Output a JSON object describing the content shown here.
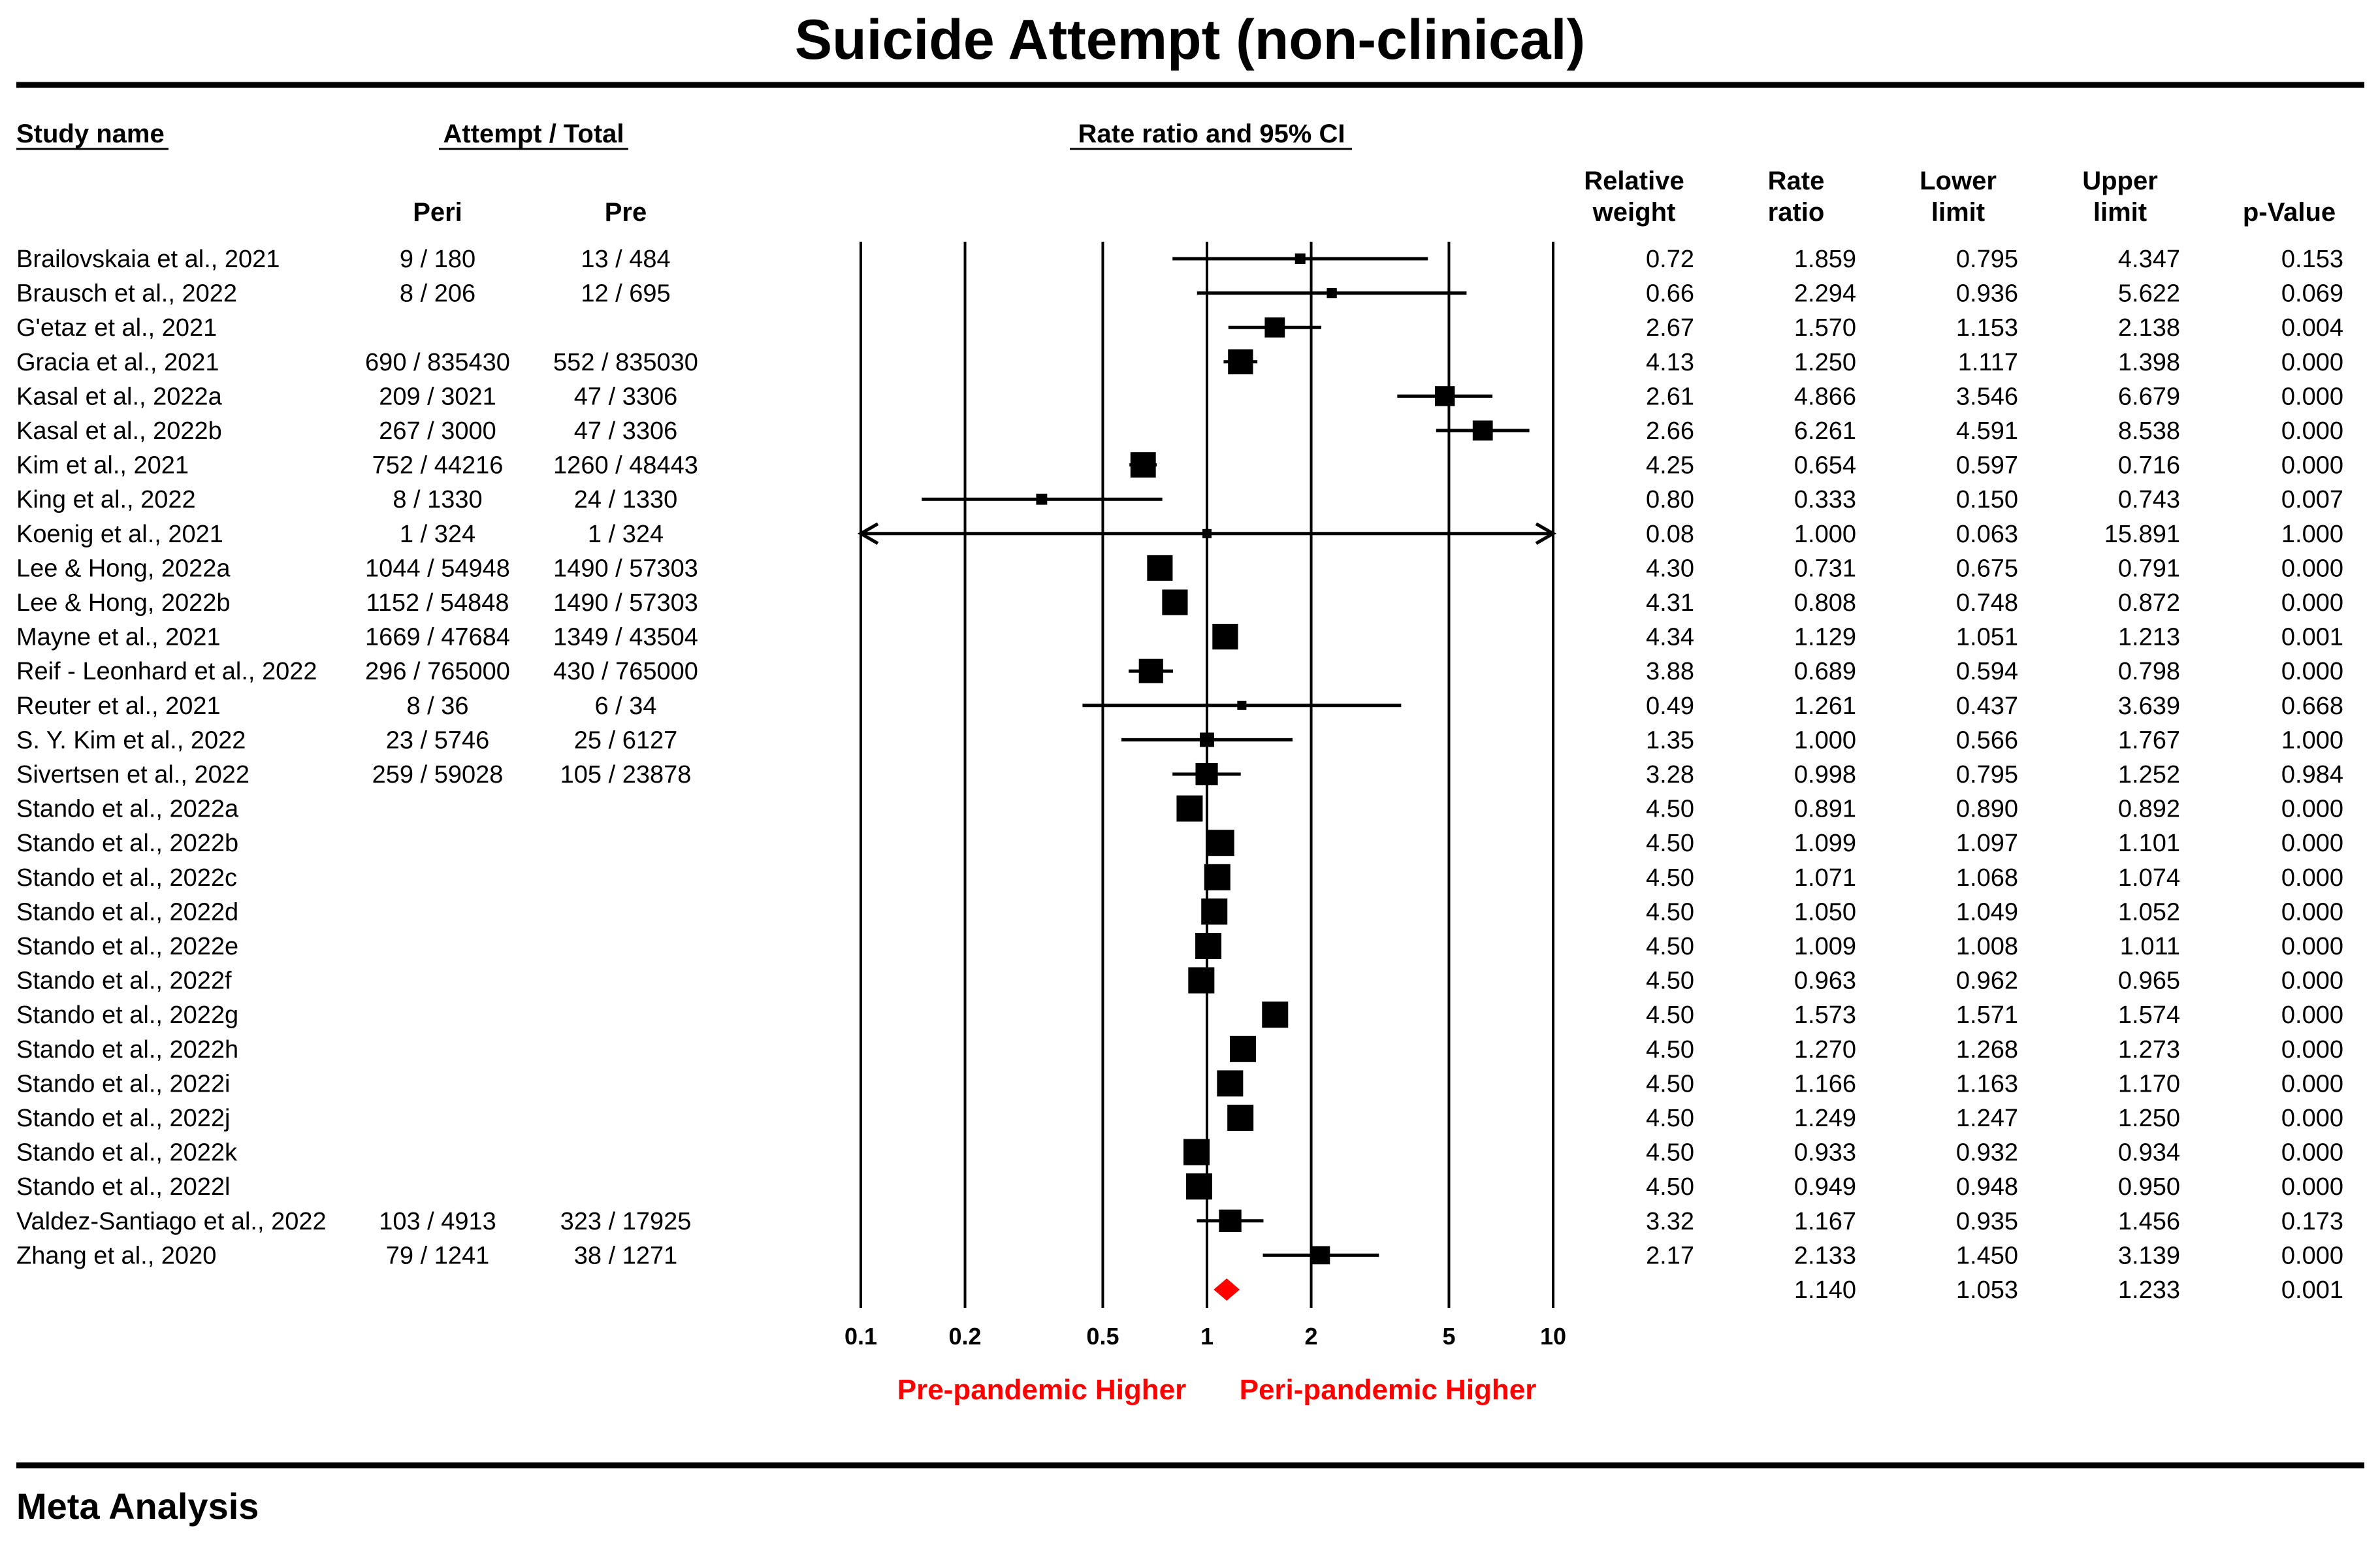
{
  "chart_data": {
    "type": "forest",
    "title": "Suicide Attempt (non-clinical)",
    "headers": {
      "study_name": "Study name",
      "counts_group": "Attempt / Total",
      "peri": "Peri",
      "pre": "Pre",
      "plot_title": "Rate ratio and 95% CI",
      "weight_line1": "Relative",
      "weight_line2": "weight",
      "rate_line1": "Rate",
      "rate_line2": "ratio",
      "lower_line1": "Lower",
      "lower_line2": "limit",
      "upper_line1": "Upper",
      "upper_line2": "limit",
      "p_value": "p-Value"
    },
    "axis": {
      "scale": "log",
      "min": 0.1,
      "max": 10,
      "ticks": [
        0.1,
        0.2,
        0.5,
        1,
        2,
        5,
        10
      ],
      "tick_labels": [
        "0.1",
        "0.2",
        "0.5",
        "1",
        "2",
        "5",
        "10"
      ]
    },
    "direction_left": "Pre-pandemic Higher",
    "direction_right": "Peri-pandemic Higher",
    "studies": [
      {
        "name": "Brailovskaia et al., 2021",
        "peri": "9 / 180",
        "pre": "13 / 484",
        "weight": "0.72",
        "rate": 1.859,
        "lower": 0.795,
        "upper": 4.347,
        "rate_label": "1.859",
        "lower_label": "0.795",
        "upper_label": "4.347",
        "p": "0.153"
      },
      {
        "name": "Brausch et al., 2022",
        "peri": "8 / 206",
        "pre": "12 / 695",
        "weight": "0.66",
        "rate": 2.294,
        "lower": 0.936,
        "upper": 5.622,
        "rate_label": "2.294",
        "lower_label": "0.936",
        "upper_label": "5.622",
        "p": "0.069"
      },
      {
        "name": "G'etaz et al., 2021",
        "peri": "",
        "pre": "",
        "weight": "2.67",
        "rate": 1.57,
        "lower": 1.153,
        "upper": 2.138,
        "rate_label": "1.570",
        "lower_label": "1.153",
        "upper_label": "2.138",
        "p": "0.004"
      },
      {
        "name": "Gracia et al., 2021",
        "peri": "690 / 835430",
        "pre": "552 / 835030",
        "weight": "4.13",
        "rate": 1.25,
        "lower": 1.117,
        "upper": 1.398,
        "rate_label": "1.250",
        "lower_label": "1.117",
        "upper_label": "1.398",
        "p": "0.000"
      },
      {
        "name": "Kasal et al., 2022a",
        "peri": "209 / 3021",
        "pre": "47 / 3306",
        "weight": "2.61",
        "rate": 4.866,
        "lower": 3.546,
        "upper": 6.679,
        "rate_label": "4.866",
        "lower_label": "3.546",
        "upper_label": "6.679",
        "p": "0.000"
      },
      {
        "name": "Kasal et al., 2022b",
        "peri": "267 / 3000",
        "pre": "47 / 3306",
        "weight": "2.66",
        "rate": 6.261,
        "lower": 4.591,
        "upper": 8.538,
        "rate_label": "6.261",
        "lower_label": "4.591",
        "upper_label": "8.538",
        "p": "0.000"
      },
      {
        "name": "Kim et al., 2021",
        "peri": "752 / 44216",
        "pre": "1260 / 48443",
        "weight": "4.25",
        "rate": 0.654,
        "lower": 0.597,
        "upper": 0.716,
        "rate_label": "0.654",
        "lower_label": "0.597",
        "upper_label": "0.716",
        "p": "0.000"
      },
      {
        "name": "King et al., 2022",
        "peri": "8 / 1330",
        "pre": "24 / 1330",
        "weight": "0.80",
        "rate": 0.333,
        "lower": 0.15,
        "upper": 0.743,
        "rate_label": "0.333",
        "lower_label": "0.150",
        "upper_label": "0.743",
        "p": "0.007"
      },
      {
        "name": "Koenig et al., 2021",
        "peri": "1 / 324",
        "pre": "1 / 324",
        "weight": "0.08",
        "rate": 1.0,
        "lower": 0.063,
        "upper": 15.891,
        "rate_label": "1.000",
        "lower_label": "0.063",
        "upper_label": "15.891",
        "p": "1.000"
      },
      {
        "name": "Lee & Hong, 2022a",
        "peri": "1044 / 54948",
        "pre": "1490 / 57303",
        "weight": "4.30",
        "rate": 0.731,
        "lower": 0.675,
        "upper": 0.791,
        "rate_label": "0.731",
        "lower_label": "0.675",
        "upper_label": "0.791",
        "p": "0.000"
      },
      {
        "name": "Lee & Hong, 2022b",
        "peri": "1152 / 54848",
        "pre": "1490 / 57303",
        "weight": "4.31",
        "rate": 0.808,
        "lower": 0.748,
        "upper": 0.872,
        "rate_label": "0.808",
        "lower_label": "0.748",
        "upper_label": "0.872",
        "p": "0.000"
      },
      {
        "name": "Mayne et al., 2021",
        "peri": "1669 / 47684",
        "pre": "1349 / 43504",
        "weight": "4.34",
        "rate": 1.129,
        "lower": 1.051,
        "upper": 1.213,
        "rate_label": "1.129",
        "lower_label": "1.051",
        "upper_label": "1.213",
        "p": "0.001"
      },
      {
        "name": "Reif - Leonhard et al., 2022",
        "peri": "296 / 765000",
        "pre": "430 / 765000",
        "weight": "3.88",
        "rate": 0.689,
        "lower": 0.594,
        "upper": 0.798,
        "rate_label": "0.689",
        "lower_label": "0.594",
        "upper_label": "0.798",
        "p": "0.000"
      },
      {
        "name": "Reuter et al., 2021",
        "peri": "8 / 36",
        "pre": "6 / 34",
        "weight": "0.49",
        "rate": 1.261,
        "lower": 0.437,
        "upper": 3.639,
        "rate_label": "1.261",
        "lower_label": "0.437",
        "upper_label": "3.639",
        "p": "0.668"
      },
      {
        "name": "S. Y. Kim et al., 2022",
        "peri": "23 / 5746",
        "pre": "25 / 6127",
        "weight": "1.35",
        "rate": 1.0,
        "lower": 0.566,
        "upper": 1.767,
        "rate_label": "1.000",
        "lower_label": "0.566",
        "upper_label": "1.767",
        "p": "1.000"
      },
      {
        "name": "Sivertsen et al., 2022",
        "peri": "259 / 59028",
        "pre": "105 / 23878",
        "weight": "3.28",
        "rate": 0.998,
        "lower": 0.795,
        "upper": 1.252,
        "rate_label": "0.998",
        "lower_label": "0.795",
        "upper_label": "1.252",
        "p": "0.984"
      },
      {
        "name": "Stando et al., 2022a",
        "peri": "",
        "pre": "",
        "weight": "4.50",
        "rate": 0.891,
        "lower": 0.89,
        "upper": 0.892,
        "rate_label": "0.891",
        "lower_label": "0.890",
        "upper_label": "0.892",
        "p": "0.000"
      },
      {
        "name": "Stando et al., 2022b",
        "peri": "",
        "pre": "",
        "weight": "4.50",
        "rate": 1.099,
        "lower": 1.097,
        "upper": 1.101,
        "rate_label": "1.099",
        "lower_label": "1.097",
        "upper_label": "1.101",
        "p": "0.000"
      },
      {
        "name": "Stando et al., 2022c",
        "peri": "",
        "pre": "",
        "weight": "4.50",
        "rate": 1.071,
        "lower": 1.068,
        "upper": 1.074,
        "rate_label": "1.071",
        "lower_label": "1.068",
        "upper_label": "1.074",
        "p": "0.000"
      },
      {
        "name": "Stando et al., 2022d",
        "peri": "",
        "pre": "",
        "weight": "4.50",
        "rate": 1.05,
        "lower": 1.049,
        "upper": 1.052,
        "rate_label": "1.050",
        "lower_label": "1.049",
        "upper_label": "1.052",
        "p": "0.000"
      },
      {
        "name": "Stando et al., 2022e",
        "peri": "",
        "pre": "",
        "weight": "4.50",
        "rate": 1.009,
        "lower": 1.008,
        "upper": 1.011,
        "rate_label": "1.009",
        "lower_label": "1.008",
        "upper_label": "1.011",
        "p": "0.000"
      },
      {
        "name": "Stando et al., 2022f",
        "peri": "",
        "pre": "",
        "weight": "4.50",
        "rate": 0.963,
        "lower": 0.962,
        "upper": 0.965,
        "rate_label": "0.963",
        "lower_label": "0.962",
        "upper_label": "0.965",
        "p": "0.000"
      },
      {
        "name": "Stando et al., 2022g",
        "peri": "",
        "pre": "",
        "weight": "4.50",
        "rate": 1.573,
        "lower": 1.571,
        "upper": 1.574,
        "rate_label": "1.573",
        "lower_label": "1.571",
        "upper_label": "1.574",
        "p": "0.000"
      },
      {
        "name": "Stando et al., 2022h",
        "peri": "",
        "pre": "",
        "weight": "4.50",
        "rate": 1.27,
        "lower": 1.268,
        "upper": 1.273,
        "rate_label": "1.270",
        "lower_label": "1.268",
        "upper_label": "1.273",
        "p": "0.000"
      },
      {
        "name": "Stando et al., 2022i",
        "peri": "",
        "pre": "",
        "weight": "4.50",
        "rate": 1.166,
        "lower": 1.163,
        "upper": 1.17,
        "rate_label": "1.166",
        "lower_label": "1.163",
        "upper_label": "1.170",
        "p": "0.000"
      },
      {
        "name": "Stando et al., 2022j",
        "peri": "",
        "pre": "",
        "weight": "4.50",
        "rate": 1.249,
        "lower": 1.247,
        "upper": 1.25,
        "rate_label": "1.249",
        "lower_label": "1.247",
        "upper_label": "1.250",
        "p": "0.000"
      },
      {
        "name": "Stando et al., 2022k",
        "peri": "",
        "pre": "",
        "weight": "4.50",
        "rate": 0.933,
        "lower": 0.932,
        "upper": 0.934,
        "rate_label": "0.933",
        "lower_label": "0.932",
        "upper_label": "0.934",
        "p": "0.000"
      },
      {
        "name": "Stando et al., 2022l",
        "peri": "",
        "pre": "",
        "weight": "4.50",
        "rate": 0.949,
        "lower": 0.948,
        "upper": 0.95,
        "rate_label": "0.949",
        "lower_label": "0.948",
        "upper_label": "0.950",
        "p": "0.000"
      },
      {
        "name": "Valdez-Santiago et al., 2022",
        "peri": "103 / 4913",
        "pre": "323 / 17925",
        "weight": "3.32",
        "rate": 1.167,
        "lower": 0.935,
        "upper": 1.456,
        "rate_label": "1.167",
        "lower_label": "0.935",
        "upper_label": "1.456",
        "p": "0.173"
      },
      {
        "name": "Zhang et al., 2020",
        "peri": "79 / 1241",
        "pre": "38 / 1271",
        "weight": "2.17",
        "rate": 2.133,
        "lower": 1.45,
        "upper": 3.139,
        "rate_label": "2.133",
        "lower_label": "1.450",
        "upper_label": "3.139",
        "p": "0.000"
      }
    ],
    "pooled": {
      "rate": 1.14,
      "lower": 1.053,
      "upper": 1.233,
      "rate_label": "1.140",
      "lower_label": "1.053",
      "upper_label": "1.233",
      "p": "0.001"
    },
    "footer": "Meta Analysis",
    "colors": {
      "ink": "#000000",
      "pooled": "#ff0000",
      "direction": "#ff0000"
    }
  }
}
